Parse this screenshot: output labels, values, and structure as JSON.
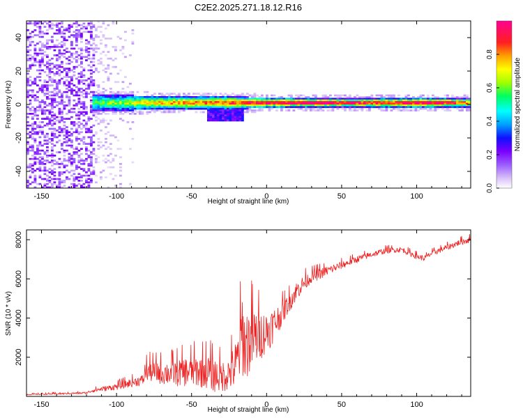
{
  "title": "C2E2.2025.271.18.12.R16",
  "chart_data": [
    {
      "type": "heatmap",
      "title": "C2E2.2025.271.18.12.R16",
      "xlabel": "Height of straight line (km)",
      "ylabel": "Frequency (Hz)",
      "xlim": [
        -160,
        136
      ],
      "ylim": [
        -50,
        50
      ],
      "xticks": [
        -150,
        -100,
        -50,
        0,
        50,
        100
      ],
      "yticks": [
        -40,
        -20,
        0,
        20,
        40
      ],
      "colorbar": {
        "label": "Normalized spectral amplitude",
        "range": [
          0,
          1
        ],
        "ticks": [
          0.0,
          0.2,
          0.4,
          0.6,
          0.8
        ],
        "colors": [
          "#ffffff",
          "#d8c0f8",
          "#9b5cff",
          "#7a00ff",
          "#1010ff",
          "#00a0ff",
          "#00ffff",
          "#00ff60",
          "#a0ff00",
          "#ffff00",
          "#ffa000",
          "#ff2020",
          "#ff0090"
        ]
      },
      "structure": {
        "noise_region_x": [
          -160,
          -85
        ],
        "noise_dense_x": [
          -160,
          -115
        ],
        "signal_start_x": -116,
        "signal_center_hz": 1,
        "signal_halfwidth_hz": [
          [
            -116,
            5
          ],
          [
            -60,
            4
          ],
          [
            -25,
            4
          ],
          [
            0,
            3
          ],
          [
            50,
            2.5
          ],
          [
            100,
            3
          ],
          [
            136,
            2.5
          ]
        ],
        "signal_peak_amplitude": [
          [
            -116,
            0.35
          ],
          [
            -90,
            0.5
          ],
          [
            -60,
            0.65
          ],
          [
            -30,
            0.7
          ],
          [
            0,
            0.8
          ],
          [
            40,
            0.85
          ],
          [
            80,
            0.75
          ],
          [
            110,
            0.85
          ],
          [
            136,
            0.7
          ]
        ],
        "lower_lobe_x": [
          -40,
          -15
        ],
        "lower_lobe_hz": -8
      }
    },
    {
      "type": "line",
      "xlabel": "Height of straight line (km)",
      "ylabel": "SNR (10 * v/v)",
      "xlim": [
        -160,
        136
      ],
      "ylim": [
        0,
        8500
      ],
      "xticks": [
        -150,
        -100,
        -50,
        0,
        50,
        100
      ],
      "yticks": [
        2000,
        4000,
        6000,
        8000
      ],
      "series": [
        {
          "name": "SNR",
          "color": "#ee2222",
          "x": [
            -160,
            -140,
            -120,
            -116,
            -100,
            -90,
            -82,
            -81,
            -70,
            -60,
            -50,
            -40,
            -35,
            -30,
            -25,
            -20,
            -17,
            -16,
            -15,
            -12,
            -8,
            -5,
            0,
            5,
            10,
            15,
            20,
            25,
            30,
            35,
            40,
            50,
            60,
            70,
            80,
            90,
            100,
            105,
            110,
            120,
            130,
            136
          ],
          "y": [
            100,
            130,
            180,
            300,
            500,
            700,
            850,
            1300,
            1200,
            1200,
            1300,
            1300,
            1100,
            1000,
            1200,
            1600,
            2800,
            3500,
            2600,
            2800,
            3000,
            3100,
            3300,
            3700,
            4200,
            4800,
            5400,
            5800,
            6100,
            6250,
            6400,
            6700,
            7000,
            7250,
            7450,
            7500,
            7150,
            7050,
            7300,
            7600,
            7900,
            8000
          ],
          "noise": [
            30,
            40,
            50,
            90,
            170,
            230,
            280,
            500,
            600,
            700,
            800,
            900,
            900,
            800,
            900,
            1400,
            1900,
            2500,
            1900,
            1800,
            1600,
            1300,
            1100,
            900,
            600,
            500,
            500,
            400,
            300,
            300,
            250,
            200,
            180,
            160,
            150,
            140,
            150,
            140,
            140,
            150,
            160,
            170
          ]
        }
      ]
    }
  ]
}
